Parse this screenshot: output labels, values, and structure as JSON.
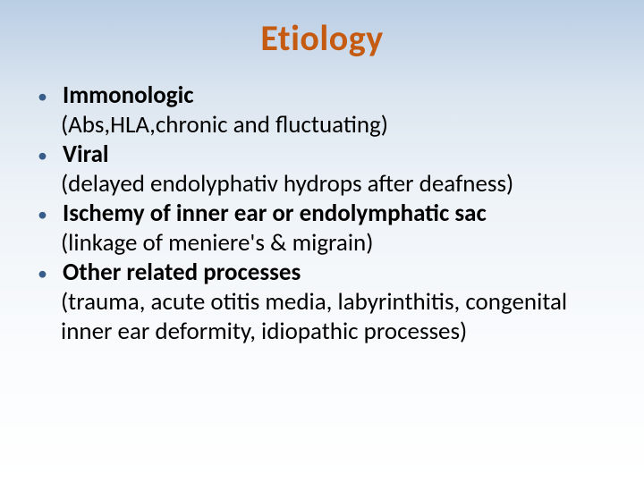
{
  "slide": {
    "title": "Etiology",
    "title_color": "#c55a11",
    "bullet_color": "#385d8a",
    "background_gradient": [
      "#b9cde4",
      "#dce6f0",
      "#eef3f8",
      "#f9fbfd",
      "#ffffff"
    ],
    "font_family": "Calibri",
    "title_fontsize": 40,
    "body_fontsize": 27,
    "items": [
      {
        "head": "Immonologic",
        "sub": "(Abs,HLA,chronic and fluctuating)"
      },
      {
        "head": "Viral",
        "sub": " (delayed endolyphativ hydrops after deafness)"
      },
      {
        "head": "Ischemy of inner ear or endolymphatic sac",
        "sub": "(linkage of meniere's & migrain)"
      },
      {
        "head": "Other related processes",
        "sub": "(trauma, acute otitis media, labyrinthitis, congenital inner ear deformity, idiopathic processes)"
      }
    ]
  }
}
